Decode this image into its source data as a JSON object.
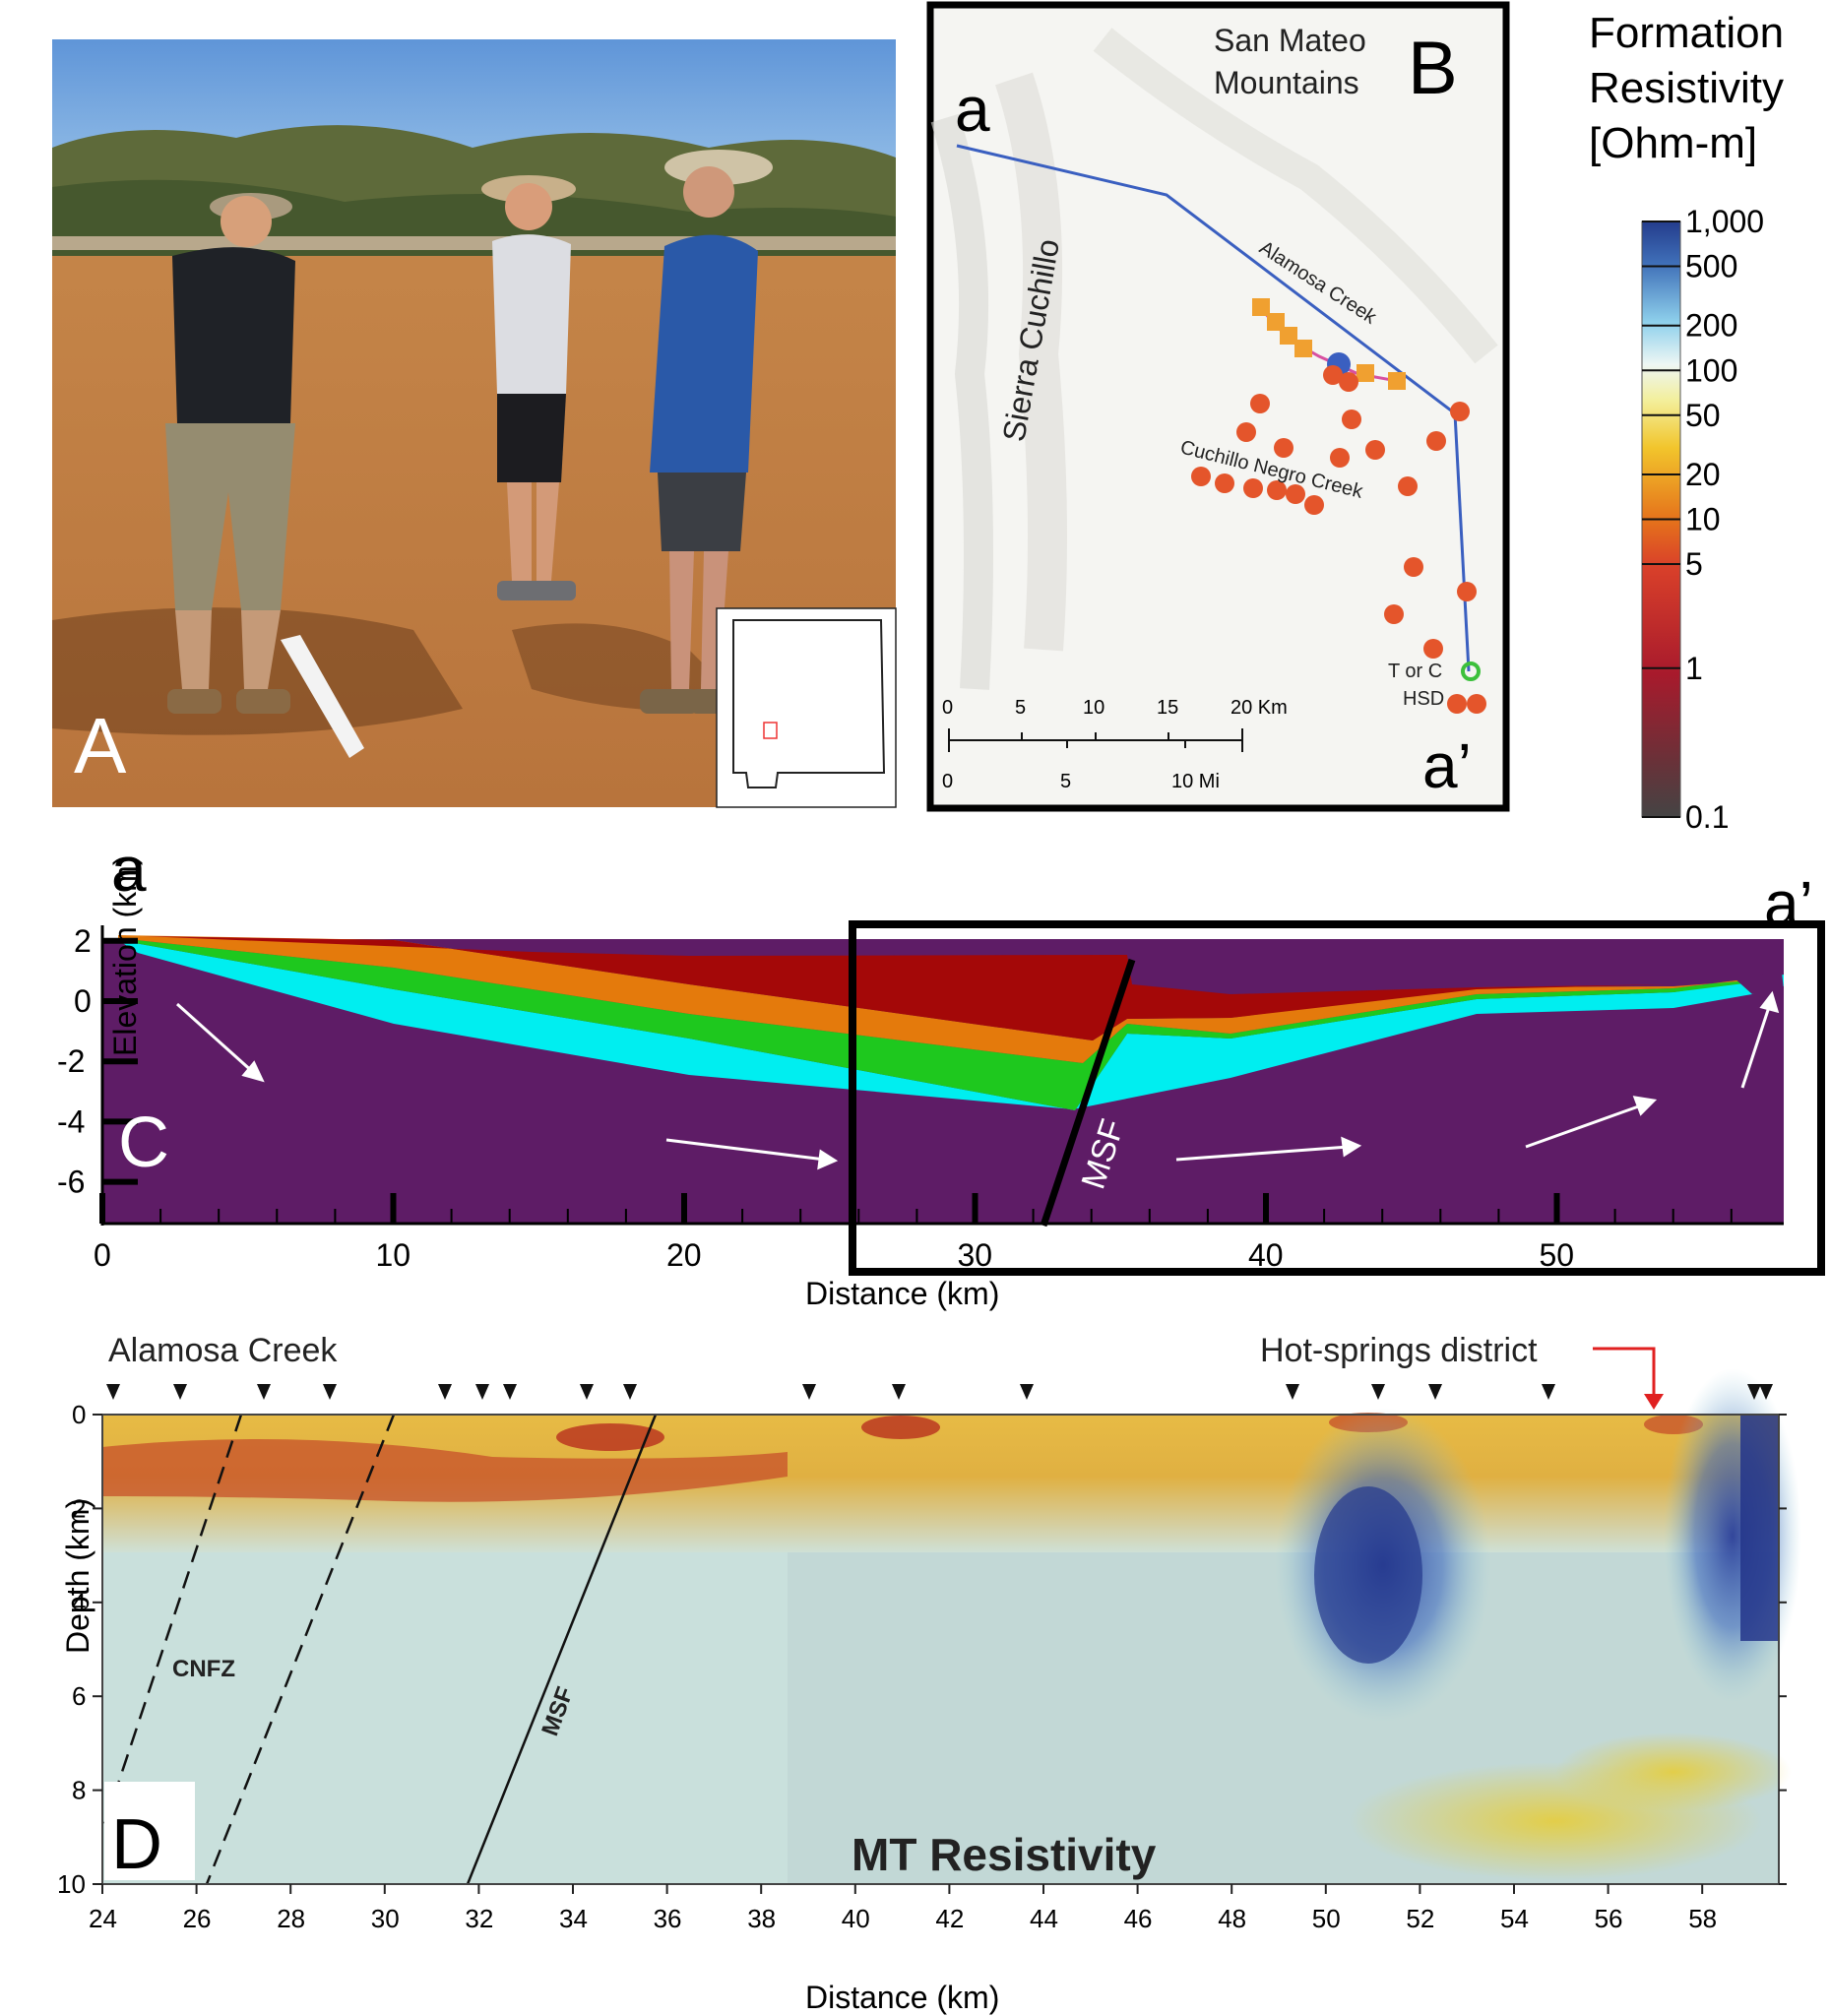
{
  "panel_a": {
    "letter": "A"
  },
  "panel_b": {
    "letter": "B",
    "profile_start": "a",
    "profile_end": "a’",
    "place_labels": {
      "mountains_line1": "San Mateo",
      "mountains_line2": "Mountains",
      "sierra": "Sierra Cuchillo",
      "alamosa": "Alamosa Creek",
      "cuchillo": "Cuchillo Negro Creek",
      "torc": "T or C",
      "hsd": "HSD"
    },
    "scale_km": [
      "0",
      "5",
      "10",
      "15",
      "20 Km"
    ],
    "scale_mi": [
      "0",
      "5",
      "10 Mi"
    ]
  },
  "colorbar": {
    "title_line1": "Formation",
    "title_line2": "Resistivity",
    "title_line3": "[Ohm-m]",
    "ticks": [
      "1,000",
      "500",
      "200",
      "100",
      "50",
      "20",
      "10",
      "5",
      "1",
      "0.1"
    ]
  },
  "panel_c": {
    "letter": "C",
    "profile_start": "a",
    "profile_end": "a’",
    "fault_label": "MSF",
    "xlabel": "Distance (km)",
    "ylabel": "Elevation (km)",
    "xticks": [
      "0",
      "10",
      "20",
      "30",
      "40",
      "50"
    ],
    "yticks": [
      "2",
      "0",
      "-2",
      "-4",
      "-6"
    ]
  },
  "panel_d": {
    "letter": "D",
    "title": "MT Resistivity",
    "label_alamosa": "Alamosa Creek",
    "label_hotsprings": "Hot-springs district",
    "label_cnfz": "CNFZ",
    "label_msf": "MSF",
    "xlabel": "Distance (km)",
    "ylabel": "Depth (km)",
    "xticks": [
      "24",
      "26",
      "28",
      "30",
      "32",
      "34",
      "36",
      "38",
      "40",
      "42",
      "44",
      "46",
      "48",
      "50",
      "52",
      "54",
      "56",
      "58"
    ],
    "yticks": [
      "0",
      "2",
      "4",
      "6",
      "8",
      "10"
    ]
  },
  "colors": {
    "purple": "#5e1c66",
    "cyan": "#00eef0",
    "green": "#1ec81e",
    "orange": "#e47a0c",
    "darkred": "#a40808",
    "station_orange": "#e4552b",
    "profile_blue": "#3a5fc0"
  }
}
